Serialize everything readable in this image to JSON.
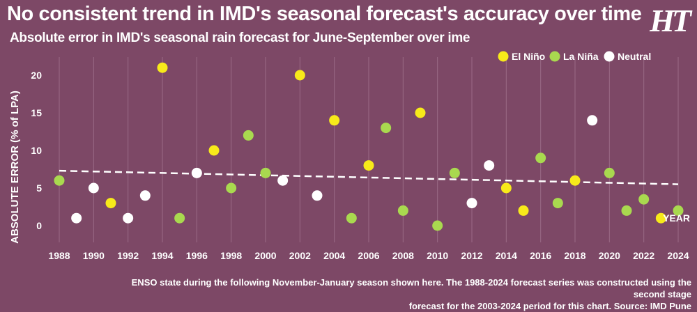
{
  "header": {
    "title": "No consistent trend in IMD's seasonal forecast's accuracy over time",
    "subtitle": "Absolute error in IMD's seasonal rain forecast for June-September over ime",
    "logo": "HT"
  },
  "footnote": {
    "line1": "ENSO state during the following November-January season shown here. The 1988-2024 forecast series was constructed using the second stage",
    "line2": "forecast for the 2003-2024 period for this chart. Source: IMD Pune"
  },
  "colors": {
    "background": "#7d4866",
    "El Niño": "#f7ea1a",
    "La Niña": "#a9d94f",
    "Neutral": "#ffffff"
  },
  "chart_data": {
    "type": "scatter",
    "xlabel": "YEAR",
    "ylabel": "ABSOLUTE ERROR (% of LPA)",
    "xlim": [
      1988,
      2024
    ],
    "ylim": [
      0,
      20
    ],
    "xticks": [
      1988,
      1990,
      1992,
      1994,
      1996,
      1998,
      2000,
      2002,
      2004,
      2006,
      2008,
      2010,
      2012,
      2014,
      2016,
      2018,
      2020,
      2022,
      2024
    ],
    "yticks": [
      0,
      5,
      10,
      15,
      20
    ],
    "grid": true,
    "legend_position": "top-right",
    "legend": [
      "El Niño",
      "La Niña",
      "Neutral"
    ],
    "points": [
      {
        "x": 1988,
        "y": 6,
        "enso": "La Niña"
      },
      {
        "x": 1989,
        "y": 1,
        "enso": "Neutral"
      },
      {
        "x": 1990,
        "y": 5,
        "enso": "Neutral"
      },
      {
        "x": 1991,
        "y": 3,
        "enso": "El Niño"
      },
      {
        "x": 1992,
        "y": 1,
        "enso": "Neutral"
      },
      {
        "x": 1993,
        "y": 4,
        "enso": "Neutral"
      },
      {
        "x": 1994,
        "y": 21,
        "enso": "El Niño"
      },
      {
        "x": 1995,
        "y": 1,
        "enso": "La Niña"
      },
      {
        "x": 1996,
        "y": 7,
        "enso": "Neutral"
      },
      {
        "x": 1997,
        "y": 10,
        "enso": "El Niño"
      },
      {
        "x": 1998,
        "y": 5,
        "enso": "La Niña"
      },
      {
        "x": 1999,
        "y": 12,
        "enso": "La Niña"
      },
      {
        "x": 2000,
        "y": 7,
        "enso": "La Niña"
      },
      {
        "x": 2001,
        "y": 6,
        "enso": "Neutral"
      },
      {
        "x": 2002,
        "y": 20,
        "enso": "El Niño"
      },
      {
        "x": 2003,
        "y": 4,
        "enso": "Neutral"
      },
      {
        "x": 2004,
        "y": 14,
        "enso": "El Niño"
      },
      {
        "x": 2005,
        "y": 1,
        "enso": "La Niña"
      },
      {
        "x": 2006,
        "y": 8,
        "enso": "El Niño"
      },
      {
        "x": 2007,
        "y": 13,
        "enso": "La Niña"
      },
      {
        "x": 2008,
        "y": 2,
        "enso": "La Niña"
      },
      {
        "x": 2009,
        "y": 15,
        "enso": "El Niño"
      },
      {
        "x": 2010,
        "y": 0,
        "enso": "La Niña"
      },
      {
        "x": 2011,
        "y": 7,
        "enso": "La Niña"
      },
      {
        "x": 2012,
        "y": 3,
        "enso": "Neutral"
      },
      {
        "x": 2013,
        "y": 8,
        "enso": "Neutral"
      },
      {
        "x": 2014,
        "y": 5,
        "enso": "El Niño"
      },
      {
        "x": 2015,
        "y": 2,
        "enso": "El Niño"
      },
      {
        "x": 2016,
        "y": 9,
        "enso": "La Niña"
      },
      {
        "x": 2017,
        "y": 3,
        "enso": "La Niña"
      },
      {
        "x": 2018,
        "y": 6,
        "enso": "El Niño"
      },
      {
        "x": 2019,
        "y": 14,
        "enso": "Neutral"
      },
      {
        "x": 2020,
        "y": 7,
        "enso": "La Niña"
      },
      {
        "x": 2021,
        "y": 2,
        "enso": "La Niña"
      },
      {
        "x": 2022,
        "y": 3.5,
        "enso": "La Niña"
      },
      {
        "x": 2023,
        "y": 1,
        "enso": "El Niño"
      },
      {
        "x": 2024,
        "y": 2,
        "enso": "La Niña"
      }
    ],
    "trendline": {
      "x": [
        1988,
        2024
      ],
      "y": [
        7.3,
        5.5
      ],
      "style": "dashed",
      "color": "#ffffff"
    }
  }
}
